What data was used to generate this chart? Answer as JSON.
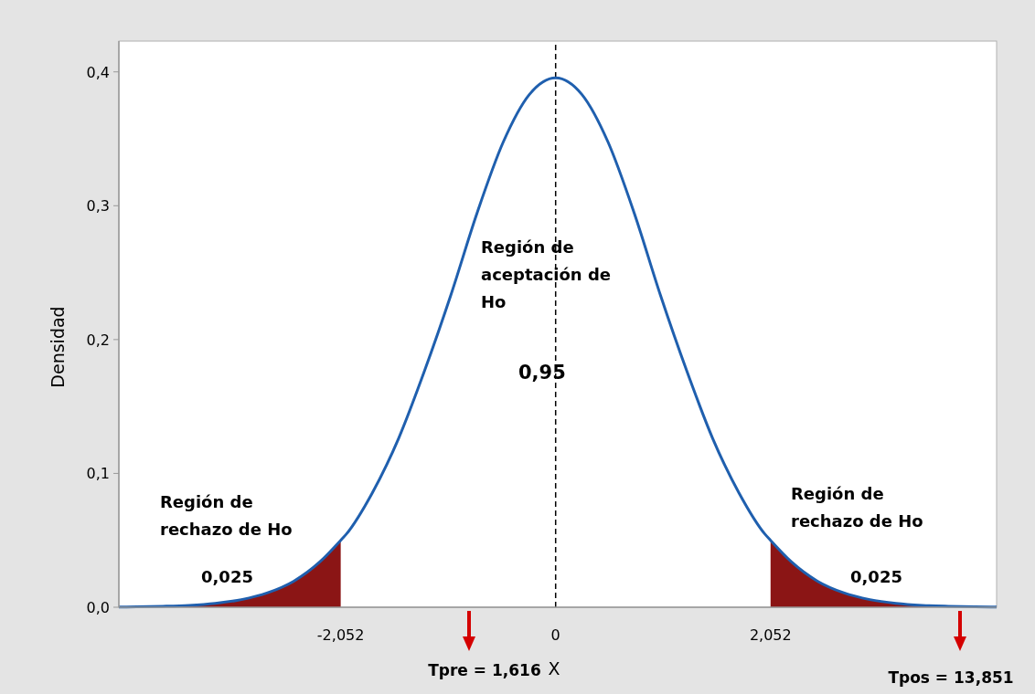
{
  "chart_data": {
    "type": "line",
    "xlabel": "X",
    "ylabel": "Densidad",
    "xlim": [
      -4.17,
      4.21
    ],
    "ylim": [
      0,
      0.423
    ],
    "xticks": [
      {
        "value": -2.052,
        "label": "-2,052"
      },
      {
        "value": 0,
        "label": "0"
      },
      {
        "value": 2.052,
        "label": "2,052"
      }
    ],
    "yticks": [
      {
        "value": 0,
        "label": "0,0"
      },
      {
        "value": 0.1,
        "label": "0,1"
      },
      {
        "value": 0.2,
        "label": "0,2"
      },
      {
        "value": 0.3,
        "label": "0,3"
      },
      {
        "value": 0.4,
        "label": "0,4"
      }
    ],
    "series": [
      {
        "type": "area",
        "color": "#8b1515",
        "x": [
          -4.17,
          -4,
          -3.75,
          -3.5,
          -3.25,
          -3,
          -2.75,
          -2.5,
          -2.25,
          -2.052
        ],
        "values": [
          0.0002,
          0.0003,
          0.0007,
          0.0014,
          0.0029,
          0.0057,
          0.0108,
          0.0195,
          0.034,
          0.05
        ]
      },
      {
        "type": "area",
        "color": "#8b1515",
        "x": [
          2.052,
          2.25,
          2.5,
          2.75,
          3,
          3.25,
          3.5,
          3.75,
          4,
          4.21
        ],
        "values": [
          0.05,
          0.034,
          0.0195,
          0.0108,
          0.0057,
          0.0029,
          0.0014,
          0.0007,
          0.0003,
          0.0002
        ]
      },
      {
        "color": "#1f5fae",
        "x": [
          -4.17,
          -4,
          -3.75,
          -3.5,
          -3.25,
          -3,
          -2.75,
          -2.5,
          -2.25,
          -2.052,
          -2,
          -1.75,
          -1.5,
          -1.25,
          -1,
          -0.75,
          -0.5,
          -0.25,
          0,
          0.25,
          0.5,
          0.75,
          1,
          1.25,
          1.5,
          1.75,
          2,
          2.052,
          2.25,
          2.5,
          2.75,
          3,
          3.25,
          3.5,
          3.75,
          4,
          4.21
        ],
        "values": [
          0.0002,
          0.0003,
          0.0007,
          0.0014,
          0.0029,
          0.0057,
          0.0108,
          0.0195,
          0.034,
          0.05,
          0.0545,
          0.0855,
          0.126,
          0.177,
          0.2333,
          0.2946,
          0.3476,
          0.3832,
          0.3956,
          0.3832,
          0.3476,
          0.2946,
          0.2333,
          0.177,
          0.126,
          0.0855,
          0.0545,
          0.05,
          0.034,
          0.0195,
          0.0108,
          0.0057,
          0.0029,
          0.0014,
          0.0007,
          0.0003,
          0.0002
        ]
      }
    ],
    "ref_lines": [
      {
        "axis": "x",
        "value": 0,
        "line_style": "dashed",
        "color": "#000000"
      }
    ],
    "annotations": [
      "Región de aceptación de Ho",
      "0,95",
      "Región de rechazo de Ho",
      "0,025",
      "Región de rechazo de Ho",
      "0,025",
      "Tpre = 1,616",
      "Tpos = 13,851"
    ]
  }
}
